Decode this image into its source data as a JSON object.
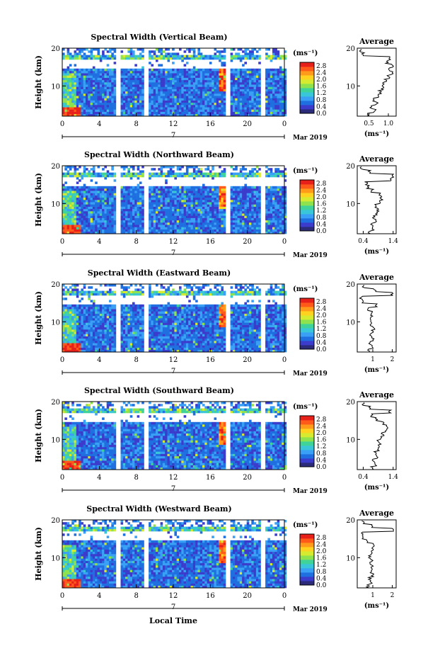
{
  "figure": {
    "x_axis_title": "Local Time",
    "day_label": "7",
    "month_year_label": "Mar 2019"
  },
  "colorbar": {
    "unit_label": "(ms⁻¹)",
    "ticks": [
      "2.8",
      "2.4",
      "2.0",
      "1.6",
      "1.2",
      "0.8",
      "0.4",
      "0.0"
    ],
    "range": [
      0.0,
      3.0
    ],
    "colors": [
      "#2b2b7a",
      "#3b3bcc",
      "#1f6fe0",
      "#3aa0f5",
      "#39c6d8",
      "#3fd39a",
      "#8ee24e",
      "#d6ea2f",
      "#ffd21f",
      "#ff9a1a",
      "#ff5a1a",
      "#e8201a"
    ]
  },
  "chart_data": [
    {
      "type": "heatmap",
      "title": "Spectral Width (Vertical Beam)",
      "ylabel": "Height (km)",
      "xlim": [
        0,
        24
      ],
      "ylim": [
        2,
        20
      ],
      "x_ticks": [
        "0",
        "4",
        "8",
        "12",
        "16",
        "20",
        "0"
      ],
      "y_ticks": [
        "20",
        "10"
      ],
      "data_gaps_hours": [
        [
          5.7,
          6.3
        ],
        [
          8.6,
          9.2
        ],
        [
          17.6,
          18.1
        ],
        [
          21.3,
          21.9
        ]
      ],
      "profile": {
        "title": "Average",
        "xlabel": "(ms⁻¹)",
        "x_ticks": [
          "0.5",
          "1.0"
        ],
        "xlim": [
          0.2,
          1.2
        ],
        "y_ticks": [
          "20",
          "10"
        ],
        "heights": [
          2.5,
          3.5,
          4.5,
          5.5,
          6.5,
          7.5,
          8.5,
          9.5,
          10.5,
          11.5,
          12.5,
          13.5,
          14.5,
          15.5,
          16.5,
          17.5,
          18.5,
          19.5
        ],
        "values": [
          0.48,
          0.65,
          0.55,
          0.7,
          0.62,
          0.75,
          0.78,
          0.85,
          0.88,
          0.92,
          1.0,
          1.1,
          1.02,
          1.12,
          0.96,
          1.05,
          0.35,
          0.3
        ]
      }
    },
    {
      "type": "heatmap",
      "title": "Spectral Width (Northward Beam)",
      "ylabel": "Height (km)",
      "xlim": [
        0,
        24
      ],
      "ylim": [
        2,
        20
      ],
      "x_ticks": [
        "0",
        "4",
        "8",
        "12",
        "16",
        "20",
        "0"
      ],
      "y_ticks": [
        "20",
        "10"
      ],
      "data_gaps_hours": [
        [
          5.7,
          6.3
        ],
        [
          8.6,
          9.2
        ],
        [
          17.6,
          18.1
        ],
        [
          21.3,
          21.9
        ]
      ],
      "profile": {
        "title": "Average",
        "xlabel": "(ms⁻¹)",
        "x_ticks": [
          "0.4",
          "1.4"
        ],
        "xlim": [
          0.2,
          1.5
        ],
        "y_ticks": [
          "20",
          "10"
        ],
        "heights": [
          2.5,
          3.5,
          4.5,
          5.5,
          6.5,
          7.5,
          8.5,
          9.5,
          10.5,
          11.5,
          12.5,
          13.5,
          14.5,
          15.5,
          16.5,
          17.5,
          18.5,
          19.5
        ],
        "values": [
          0.6,
          0.72,
          0.68,
          0.8,
          0.75,
          0.85,
          0.9,
          0.82,
          0.95,
          1.0,
          0.95,
          0.7,
          0.55,
          0.5,
          1.3,
          1.4,
          0.6,
          0.35
        ]
      }
    },
    {
      "type": "heatmap",
      "title": "Spectral Width (Eastward Beam)",
      "ylabel": "Height (km)",
      "xlim": [
        0,
        24
      ],
      "ylim": [
        2,
        20
      ],
      "x_ticks": [
        "0",
        "4",
        "8",
        "12",
        "16",
        "20",
        "0"
      ],
      "y_ticks": [
        "20",
        "10"
      ],
      "data_gaps_hours": [
        [
          5.7,
          6.3
        ],
        [
          8.6,
          9.2
        ],
        [
          17.6,
          18.1
        ],
        [
          21.3,
          21.9
        ]
      ],
      "profile": {
        "title": "Average",
        "xlabel": "(ms⁻¹)",
        "x_ticks": [
          "1",
          "2"
        ],
        "xlim": [
          0.2,
          2.2
        ],
        "y_ticks": [
          "20",
          "10"
        ],
        "heights": [
          2.5,
          3.5,
          4.5,
          5.5,
          6.5,
          7.5,
          8.5,
          9.5,
          10.5,
          11.5,
          12.5,
          13.5,
          14.5,
          15.5,
          16.5,
          17.5,
          18.5,
          19.5
        ],
        "values": [
          0.8,
          0.95,
          0.85,
          1.0,
          0.9,
          0.95,
          1.05,
          0.9,
          0.85,
          0.95,
          0.9,
          0.8,
          1.2,
          0.5,
          0.4,
          2.0,
          1.1,
          0.5
        ]
      }
    },
    {
      "type": "heatmap",
      "title": "Spectral Width (Southward Beam)",
      "ylabel": "Height (km)",
      "xlim": [
        0,
        24
      ],
      "ylim": [
        2,
        20
      ],
      "x_ticks": [
        "0",
        "4",
        "8",
        "12",
        "16",
        "20",
        "0"
      ],
      "y_ticks": [
        "20",
        "10"
      ],
      "data_gaps_hours": [
        [
          5.7,
          6.3
        ],
        [
          8.6,
          9.2
        ],
        [
          17.6,
          18.1
        ],
        [
          21.3,
          21.9
        ]
      ],
      "profile": {
        "title": "Average",
        "xlabel": "(ms⁻¹)",
        "x_ticks": [
          "0.4",
          "1.4"
        ],
        "xlim": [
          0.2,
          1.5
        ],
        "y_ticks": [
          "20",
          "10"
        ],
        "heights": [
          2.5,
          3.5,
          4.5,
          5.5,
          6.5,
          7.5,
          8.5,
          9.5,
          10.5,
          11.5,
          12.5,
          13.5,
          14.5,
          15.5,
          16.5,
          17.5,
          18.5,
          19.5
        ],
        "values": [
          0.7,
          0.82,
          0.75,
          0.88,
          0.8,
          0.92,
          0.95,
          0.9,
          1.0,
          1.05,
          1.15,
          1.2,
          1.05,
          0.85,
          0.7,
          1.3,
          0.6,
          0.4
        ]
      }
    },
    {
      "type": "heatmap",
      "title": "Spectral Width (Westward Beam)",
      "ylabel": "Height (km)",
      "xlim": [
        0,
        24
      ],
      "ylim": [
        2,
        20
      ],
      "x_ticks": [
        "0",
        "4",
        "8",
        "12",
        "16",
        "20",
        "0"
      ],
      "y_ticks": [
        "20",
        "10"
      ],
      "data_gaps_hours": [
        [
          5.7,
          6.3
        ],
        [
          8.6,
          9.2
        ],
        [
          17.6,
          18.1
        ],
        [
          21.3,
          21.9
        ]
      ],
      "profile": {
        "title": "Average",
        "xlabel": "(ms⁻¹)",
        "x_ticks": [
          "1",
          "2"
        ],
        "xlim": [
          0.2,
          2.2
        ],
        "y_ticks": [
          "20",
          "10"
        ],
        "heights": [
          2.5,
          3.5,
          4.5,
          5.5,
          6.5,
          7.5,
          8.5,
          9.5,
          10.5,
          11.5,
          12.5,
          13.5,
          14.5,
          15.5,
          16.5,
          17.5,
          18.5,
          19.5
        ],
        "values": [
          0.75,
          0.9,
          0.85,
          1.0,
          0.9,
          0.95,
          0.9,
          0.95,
          0.85,
          0.9,
          0.95,
          1.05,
          0.7,
          0.5,
          0.45,
          2.0,
          1.0,
          0.5
        ]
      }
    }
  ]
}
